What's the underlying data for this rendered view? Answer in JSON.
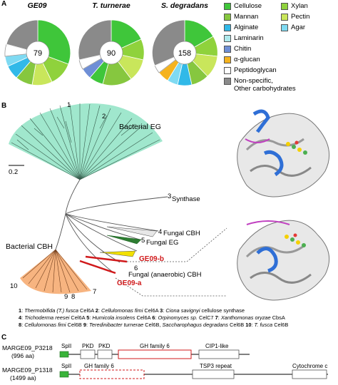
{
  "panel_letters": {
    "a": "A",
    "b": "B",
    "c": "C"
  },
  "donuts": [
    {
      "title": "GE09",
      "total": "79"
    },
    {
      "title": "T. turnerae",
      "total": "90"
    },
    {
      "title": "S. degradans",
      "total": "158"
    }
  ],
  "legend": [
    {
      "label": "Cellulose",
      "color": "#3fc63a"
    },
    {
      "label": "Xylan",
      "color": "#8fd23c"
    },
    {
      "label": "Mannan",
      "color": "#86c73f"
    },
    {
      "label": "Pectin",
      "color": "#c9e65b"
    },
    {
      "label": "Alginate",
      "color": "#31b9e8"
    },
    {
      "label": "Agar",
      "color": "#7fdaf2"
    },
    {
      "label": "Laminarin",
      "color": "#aee9ec"
    },
    {
      "label": "Chitin",
      "color": "#6f8fd6"
    },
    {
      "label": "α-glucan",
      "color": "#f5b31e"
    },
    {
      "label": "Peptidoglycan",
      "color": "#ffffff"
    },
    {
      "label": "Non-specific,",
      "color": "#8a8a8a"
    },
    {
      "label": "Other carbohydrates",
      "color": ""
    }
  ],
  "tree": {
    "scale": "0.2",
    "labels": {
      "bacterial_eg": "Bacterial EG",
      "synthase": "Synthase",
      "fungal_cbh": "Fungal CBH",
      "fungal_eg": "Fungal EG",
      "ge09_b": "GE09-b",
      "fungal_anaerobic_cbh": "Fungal (anaerobic) CBH",
      "ge09_a": "GE09-a",
      "bacterial_cbh": "Bacterial CBH"
    },
    "numbers": {
      "n1": "1",
      "n2": "2",
      "n3": "3",
      "n4": "4",
      "n5": "5",
      "n6": "6",
      "n7": "7",
      "n8": "8",
      "n9": "9",
      "n10": "10"
    }
  },
  "caption": {
    "l1": [
      {
        "n": "1",
        "t": ": ",
        "i": "Thermobifida (T.) fusca",
        "r": " Cel6A  "
      },
      {
        "n": "2",
        "t": ": ",
        "i": "Cellulomonas fimi",
        "r": " Cel6A  "
      },
      {
        "n": "3",
        "t": ": ",
        "i": "Ciona savignyi",
        "r": " cellulose synthase"
      }
    ],
    "l2": [
      {
        "n": "4",
        "t": ": ",
        "i": "Trichoderma reesei",
        "r": " Cel6A  "
      },
      {
        "n": "5",
        "t": ": ",
        "i": "Humicola insolens",
        "r": " Cel6A  "
      },
      {
        "n": "6",
        "t": ": ",
        "i": "Orpinomyces sp.",
        "r": " CelC7  "
      },
      {
        "n": "7",
        "t": ": ",
        "i": "Xanthomonas oryzae",
        "r": " CbsA"
      }
    ],
    "l3": [
      {
        "n": "8",
        "t": ": ",
        "i": "Cellulomonas fimi",
        "r": " Cel6B  "
      },
      {
        "n": "9",
        "t": ": ",
        "i": "Teredinibacter turnerae",
        "r": " Cel6B, "
      },
      {
        "n": "",
        "t": "",
        "i": "Saccharophagus degradans",
        "r": " Cel6B  "
      },
      {
        "n": "10",
        "t": ": ",
        "i": "T. fusca",
        "r": " Cel6B"
      }
    ]
  },
  "genes": [
    {
      "name": "MARGE09_P3218",
      "length": "(996 aa)",
      "domains": {
        "spii": "SpII",
        "pkd1": "PKD",
        "pkd2": "PKD",
        "gh": "GH family 6",
        "cip": "CIP1-like"
      }
    },
    {
      "name": "MARGE09_P1318",
      "length": "(1499 aa)",
      "domains": {
        "spii": "SpII",
        "gh": "GH family 6",
        "tsp": "TSP3 repeat",
        "cyt": "Cytochrome c"
      }
    }
  ]
}
